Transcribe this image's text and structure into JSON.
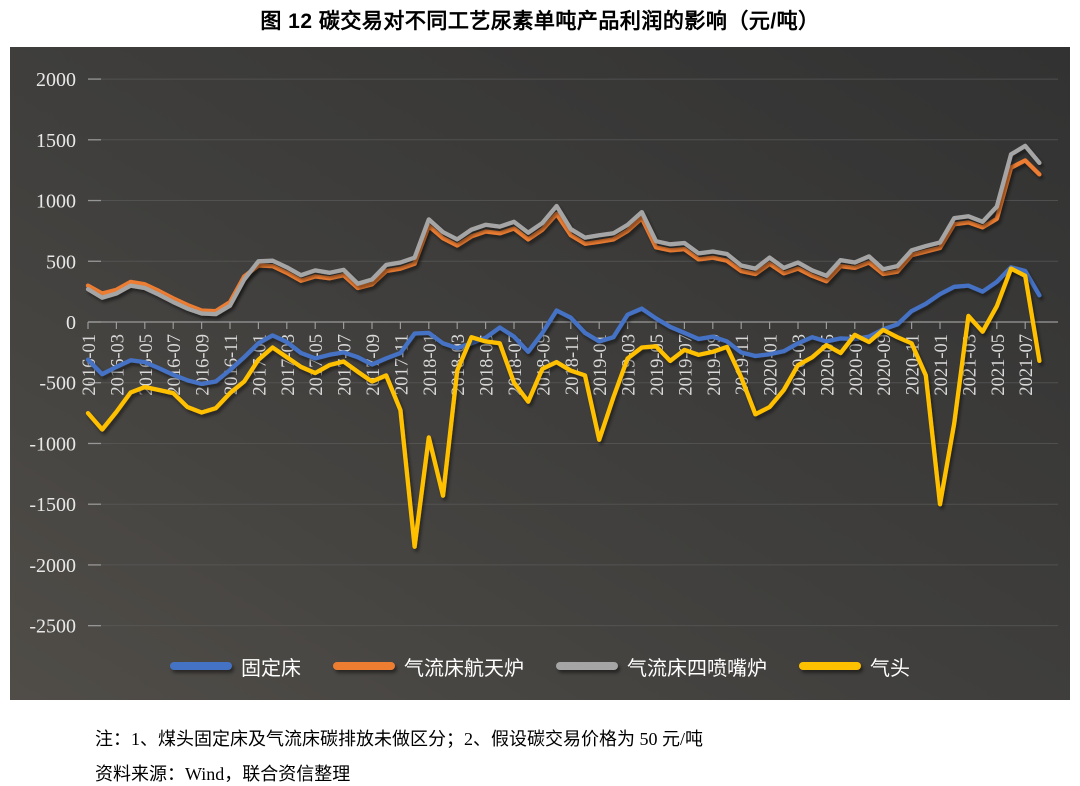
{
  "figure": {
    "title": "图 12 碳交易对不同工艺尿素单吨产品利润的影响（元/吨）",
    "note_line1": "注：1、煤头固定床及气流床碳排放未做区分；2、假设碳交易价格为 50 元/吨",
    "note_line2": "资料来源：Wind，联合资信整理"
  },
  "chart_data": {
    "type": "line",
    "title": "图 12 碳交易对不同工艺尿素单吨产品利润的影响（元/吨）",
    "xlabel": "",
    "ylabel": "元/吨",
    "ylim": [
      -2500,
      2000
    ],
    "y_ticks": [
      2000,
      1500,
      1000,
      500,
      0,
      -500,
      -1000,
      -1500,
      -2000,
      -2500
    ],
    "grid": true,
    "legend_position": "bottom",
    "plot_bg": "dark-gray",
    "x": [
      "2016-01",
      "2016-02",
      "2016-03",
      "2016-04",
      "2016-05",
      "2016-06",
      "2016-07",
      "2016-08",
      "2016-09",
      "2016-10",
      "2016-11",
      "2016-12",
      "2017-01",
      "2017-02",
      "2017-03",
      "2017-04",
      "2017-05",
      "2017-06",
      "2017-07",
      "2017-08",
      "2017-09",
      "2017-10",
      "2017-11",
      "2017-12",
      "2018-01",
      "2018-02",
      "2018-03",
      "2018-04",
      "2018-05",
      "2018-06",
      "2018-07",
      "2018-08",
      "2018-09",
      "2018-10",
      "2018-11",
      "2018-12",
      "2019-01",
      "2019-02",
      "2019-03",
      "2019-04",
      "2019-05",
      "2019-06",
      "2019-07",
      "2019-08",
      "2019-09",
      "2019-10",
      "2019-11",
      "2019-12",
      "2020-01",
      "2020-02",
      "2020-03",
      "2020-04",
      "2020-05",
      "2020-06",
      "2020-07",
      "2020-08",
      "2020-09",
      "2020-10",
      "2020-11",
      "2020-12",
      "2021-01",
      "2021-02",
      "2021-03",
      "2021-04",
      "2021-05",
      "2021-06",
      "2021-07",
      "2021-08"
    ],
    "x_tick_labels": [
      "2016-01",
      "2016-03",
      "2016-05",
      "2016-07",
      "2016-09",
      "2016-11",
      "2017-01",
      "2017-03",
      "2017-05",
      "2017-07",
      "2017-09",
      "2017-11",
      "2018-01",
      "2018-03",
      "2018-05",
      "2018-07",
      "2018-09",
      "2018-11",
      "2019-01",
      "2019-03",
      "2019-05",
      "2019-07",
      "2019-09",
      "2019-11",
      "2020-01",
      "2020-03",
      "2020-05",
      "2020-07",
      "2020-09",
      "2020-11",
      "2021-01",
      "2021-03",
      "2021-05",
      "2021-07"
    ],
    "series": [
      {
        "name": "固定床",
        "color": "#4472C4",
        "values": [
          -310,
          -430,
          -370,
          -315,
          -330,
          -380,
          -435,
          -480,
          -510,
          -490,
          -395,
          -290,
          -175,
          -110,
          -165,
          -255,
          -300,
          -270,
          -250,
          -290,
          -350,
          -300,
          -255,
          -95,
          -90,
          -175,
          -215,
          -175,
          -130,
          -45,
          -120,
          -245,
          -90,
          95,
          35,
          -90,
          -160,
          -125,
          60,
          110,
          30,
          -40,
          -90,
          -140,
          -120,
          -160,
          -250,
          -280,
          -265,
          -240,
          -175,
          -125,
          -160,
          -135,
          -140,
          -120,
          -60,
          -20,
          90,
          150,
          230,
          290,
          300,
          250,
          330,
          450,
          420,
          220
        ]
      },
      {
        "name": "气流床航天炉",
        "color": "#ED7D31",
        "values": [
          300,
          235,
          265,
          330,
          310,
          255,
          195,
          140,
          95,
          90,
          165,
          375,
          465,
          460,
          405,
          340,
          375,
          360,
          385,
          280,
          310,
          420,
          440,
          480,
          790,
          690,
          630,
          705,
          745,
          730,
          770,
          680,
          760,
          890,
          715,
          645,
          660,
          680,
          750,
          855,
          615,
          590,
          600,
          515,
          530,
          505,
          420,
          395,
          480,
          400,
          440,
          380,
          335,
          460,
          445,
          490,
          395,
          415,
          550,
          580,
          610,
          805,
          820,
          780,
          850,
          1270,
          1330,
          1215
        ]
      },
      {
        "name": "气流床四喷嘴炉",
        "color": "#A5A5A5",
        "values": [
          270,
          200,
          235,
          300,
          280,
          225,
          165,
          110,
          70,
          65,
          135,
          350,
          500,
          505,
          450,
          385,
          425,
          405,
          430,
          315,
          350,
          470,
          490,
          530,
          845,
          740,
          680,
          760,
          800,
          785,
          825,
          735,
          815,
          955,
          765,
          695,
          715,
          730,
          800,
          905,
          665,
          640,
          650,
          565,
          580,
          560,
          465,
          440,
          530,
          445,
          490,
          425,
          380,
          510,
          490,
          540,
          435,
          460,
          590,
          625,
          655,
          855,
          870,
          825,
          950,
          1380,
          1450,
          1310
        ]
      },
      {
        "name": "气头",
        "color": "#FFC000",
        "values": [
          -750,
          -885,
          -740,
          -580,
          -535,
          -560,
          -585,
          -700,
          -745,
          -710,
          -585,
          -490,
          -310,
          -210,
          -290,
          -370,
          -420,
          -355,
          -325,
          -410,
          -490,
          -440,
          -725,
          -1850,
          -950,
          -1430,
          -400,
          -125,
          -160,
          -175,
          -500,
          -655,
          -385,
          -330,
          -400,
          -440,
          -970,
          -620,
          -300,
          -210,
          -200,
          -320,
          -230,
          -270,
          -245,
          -205,
          -455,
          -760,
          -700,
          -560,
          -355,
          -290,
          -190,
          -255,
          -105,
          -165,
          -65,
          -125,
          -175,
          -440,
          -1500,
          -835,
          50,
          -80,
          130,
          440,
          380,
          -320
        ]
      }
    ]
  }
}
